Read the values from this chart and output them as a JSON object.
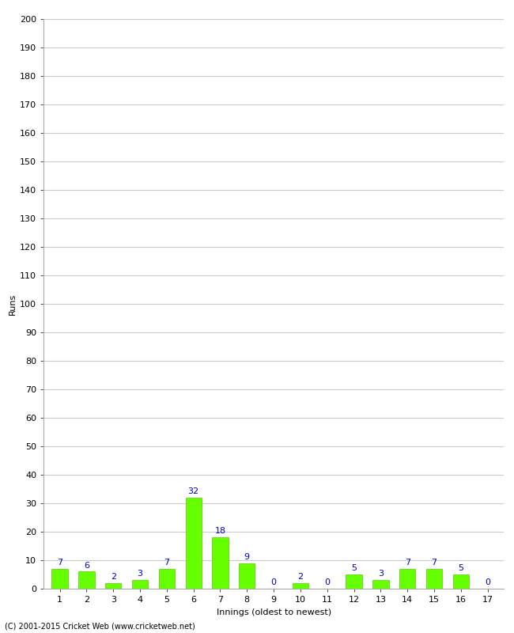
{
  "xlabel": "Innings (oldest to newest)",
  "ylabel": "Runs",
  "bar_color": "#66ff00",
  "bar_edge_color": "#55cc00",
  "label_color": "#0000cc",
  "categories": [
    "1",
    "2",
    "3",
    "4",
    "5",
    "6",
    "7",
    "8",
    "9",
    "10",
    "11",
    "12",
    "13",
    "14",
    "15",
    "16",
    "17"
  ],
  "values": [
    7,
    6,
    2,
    3,
    7,
    32,
    18,
    9,
    0,
    2,
    0,
    5,
    3,
    7,
    7,
    5,
    0
  ],
  "ylim": [
    0,
    200
  ],
  "yticks": [
    0,
    10,
    20,
    30,
    40,
    50,
    60,
    70,
    80,
    90,
    100,
    110,
    120,
    130,
    140,
    150,
    160,
    170,
    180,
    190,
    200
  ],
  "footer": "(C) 2001-2015 Cricket Web (www.cricketweb.net)",
  "background_color": "#ffffff",
  "grid_color": "#cccccc",
  "axis_label_fontsize": 8,
  "tick_fontsize": 8,
  "bar_label_fontsize": 8,
  "footer_fontsize": 7,
  "show_title": false
}
